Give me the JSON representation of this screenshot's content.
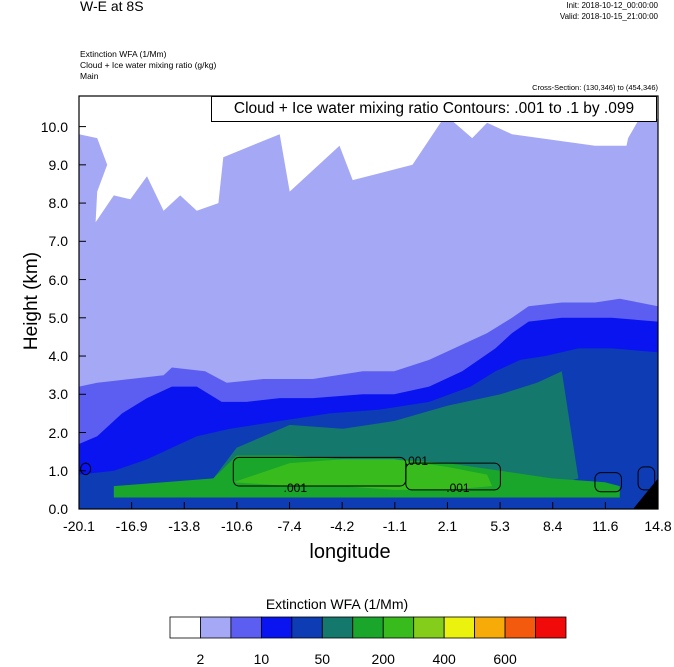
{
  "header": {
    "title": "W-E at 8S",
    "init": "Init: 2018-10-12_00:00:00",
    "valid": "Valid: 2018-10-15_21:00:00",
    "subtitle_lines": [
      "Extinction WFA   (1/Mm)",
      "Cloud + Ice water mixing ratio   (g/kg)",
      "Main"
    ],
    "cross_section": "Cross-Section: (130,346) to (454,346)"
  },
  "contour_label": "Cloud + Ice water mixing ratio Contours: .001 to .1 by .099",
  "colors": [
    "#ffffff",
    "#a5a8f5",
    "#5c5ef2",
    "#0a14f0",
    "#0d3cb4",
    "#14786c",
    "#19a62a",
    "#38bb1c",
    "#84cd1a",
    "#eaf20e",
    "#f6ab08",
    "#f45a0d",
    "#f00a0a"
  ],
  "chart_data": {
    "type": "heatmap",
    "xlabel": "longitude",
    "ylabel": "Height (km)",
    "x_ticks": [
      "-20.1",
      "-16.9",
      "-13.8",
      "-10.6",
      "-7.4",
      "-4.2",
      "-1.1",
      "2.1",
      "5.3",
      "8.4",
      "11.6",
      "14.8"
    ],
    "y_ticks": [
      "0.0",
      "1.0",
      "2.0",
      "3.0",
      "4.0",
      "5.0",
      "6.0",
      "7.0",
      "8.0",
      "9.0",
      "10.0"
    ],
    "xlim": [
      -20.1,
      14.8
    ],
    "ylim": [
      0,
      10.8
    ],
    "colorbar": {
      "title": "Extinction WFA  (1/Mm)",
      "labels": [
        "2",
        "10",
        "50",
        "200",
        "400",
        "600"
      ],
      "n_bins": 13
    },
    "contour_labels": [
      ".001",
      ".001",
      ".001"
    ],
    "regions": [
      {
        "name": "level-2-pale",
        "color_index": 1,
        "x": [
          -20.1,
          -20.1,
          -19,
          -18.4,
          -19.0,
          -19.1,
          -18,
          -17,
          -16,
          -15,
          -14,
          -13,
          -11.7,
          -11.4,
          -8,
          -7.4,
          -4.4,
          -3.6,
          0,
          2,
          3.6,
          4.5,
          6,
          11,
          12.9,
          13.0,
          13.8,
          14.8,
          14.8
        ],
        "y": [
          0,
          9.8,
          9.7,
          9.0,
          8.3,
          7.5,
          8.2,
          8.1,
          8.7,
          7.8,
          8.2,
          7.8,
          8.0,
          9.2,
          9.8,
          8.3,
          9.5,
          8.6,
          9.0,
          10.3,
          9.7,
          10.1,
          9.8,
          9.5,
          9.5,
          9.7,
          10.3,
          10.2,
          0
        ]
      },
      {
        "name": "level-10-medium",
        "color_index": 2,
        "x": [
          -20.1,
          -20.1,
          -19,
          -17,
          -15,
          -14.5,
          -12.5,
          -11.2,
          -9,
          -6,
          -3,
          -1.1,
          1,
          3,
          4.5,
          6,
          7,
          9,
          11,
          12.5,
          14.8,
          14.8
        ],
        "y": [
          0,
          3.2,
          3.3,
          3.4,
          3.5,
          3.7,
          3.6,
          3.3,
          3.4,
          3.4,
          3.6,
          3.6,
          3.9,
          4.3,
          4.6,
          5.0,
          5.3,
          5.4,
          5.4,
          5.5,
          5.3,
          0
        ]
      },
      {
        "name": "level-50-blue",
        "color_index": 3,
        "x": [
          -20.1,
          -20.1,
          -19,
          -17.5,
          -16,
          -14.5,
          -13,
          -11.5,
          -10,
          -8,
          -6,
          -3,
          -1.1,
          1,
          3,
          5,
          6,
          7,
          9,
          12,
          14.8,
          14.8
        ],
        "y": [
          0,
          1.7,
          1.9,
          2.5,
          2.9,
          3.2,
          3.2,
          2.8,
          2.8,
          2.9,
          2.9,
          3.0,
          3.0,
          3.2,
          3.6,
          4.2,
          4.6,
          4.9,
          5.0,
          5.0,
          4.9,
          0
        ]
      },
      {
        "name": "level-100-darkblue",
        "color_index": 4,
        "x": [
          -20.1,
          -20.1,
          -18,
          -16,
          -13,
          -11,
          -8,
          -5,
          -2,
          1,
          3.5,
          5,
          6.5,
          8,
          10,
          12,
          14.8,
          14.8
        ],
        "y": [
          0,
          0.9,
          1.0,
          1.3,
          1.9,
          2.1,
          2.3,
          2.5,
          2.6,
          2.8,
          3.2,
          3.6,
          3.9,
          4.0,
          4.2,
          4.2,
          4.1,
          0
        ]
      },
      {
        "name": "level-200-teal",
        "color_index": 5,
        "x": [
          -12,
          -10.6,
          -7.4,
          -4.2,
          -1.1,
          2.1,
          5.3,
          7.5,
          9,
          9.5,
          10,
          8.4,
          5.3,
          -1.1,
          -7.4,
          -12
        ],
        "y": [
          0.8,
          1.6,
          2.2,
          2.1,
          2.3,
          2.7,
          3.0,
          3.3,
          3.6,
          2.2,
          0.8,
          0.6,
          0.6,
          0.7,
          0.7,
          0.8
        ]
      },
      {
        "name": "level-300-green",
        "color_index": 6,
        "x": [
          -18,
          -12,
          -10.6,
          -7.4,
          -4.2,
          -1.1,
          2.1,
          5.3,
          8.4,
          11.6,
          12.5,
          12.5,
          8.4,
          2.1,
          -4.2,
          -10.6,
          -18
        ],
        "y": [
          0.6,
          0.8,
          1.4,
          1.4,
          1.3,
          1.3,
          1.2,
          1.0,
          0.8,
          0.7,
          0.6,
          0.3,
          0.3,
          0.3,
          0.3,
          0.3,
          0.3
        ]
      },
      {
        "name": "level-400-lightgreen",
        "color_index": 7,
        "x": [
          -10.8,
          -7.4,
          -4.2,
          -1.1,
          2.1,
          4.5,
          4.8,
          2.1,
          -1.1,
          -4.2,
          -7.4,
          -10.8
        ],
        "y": [
          0.7,
          1.2,
          1.3,
          1.3,
          1.1,
          0.9,
          0.6,
          0.5,
          0.5,
          0.6,
          0.6,
          0.7
        ]
      }
    ]
  }
}
